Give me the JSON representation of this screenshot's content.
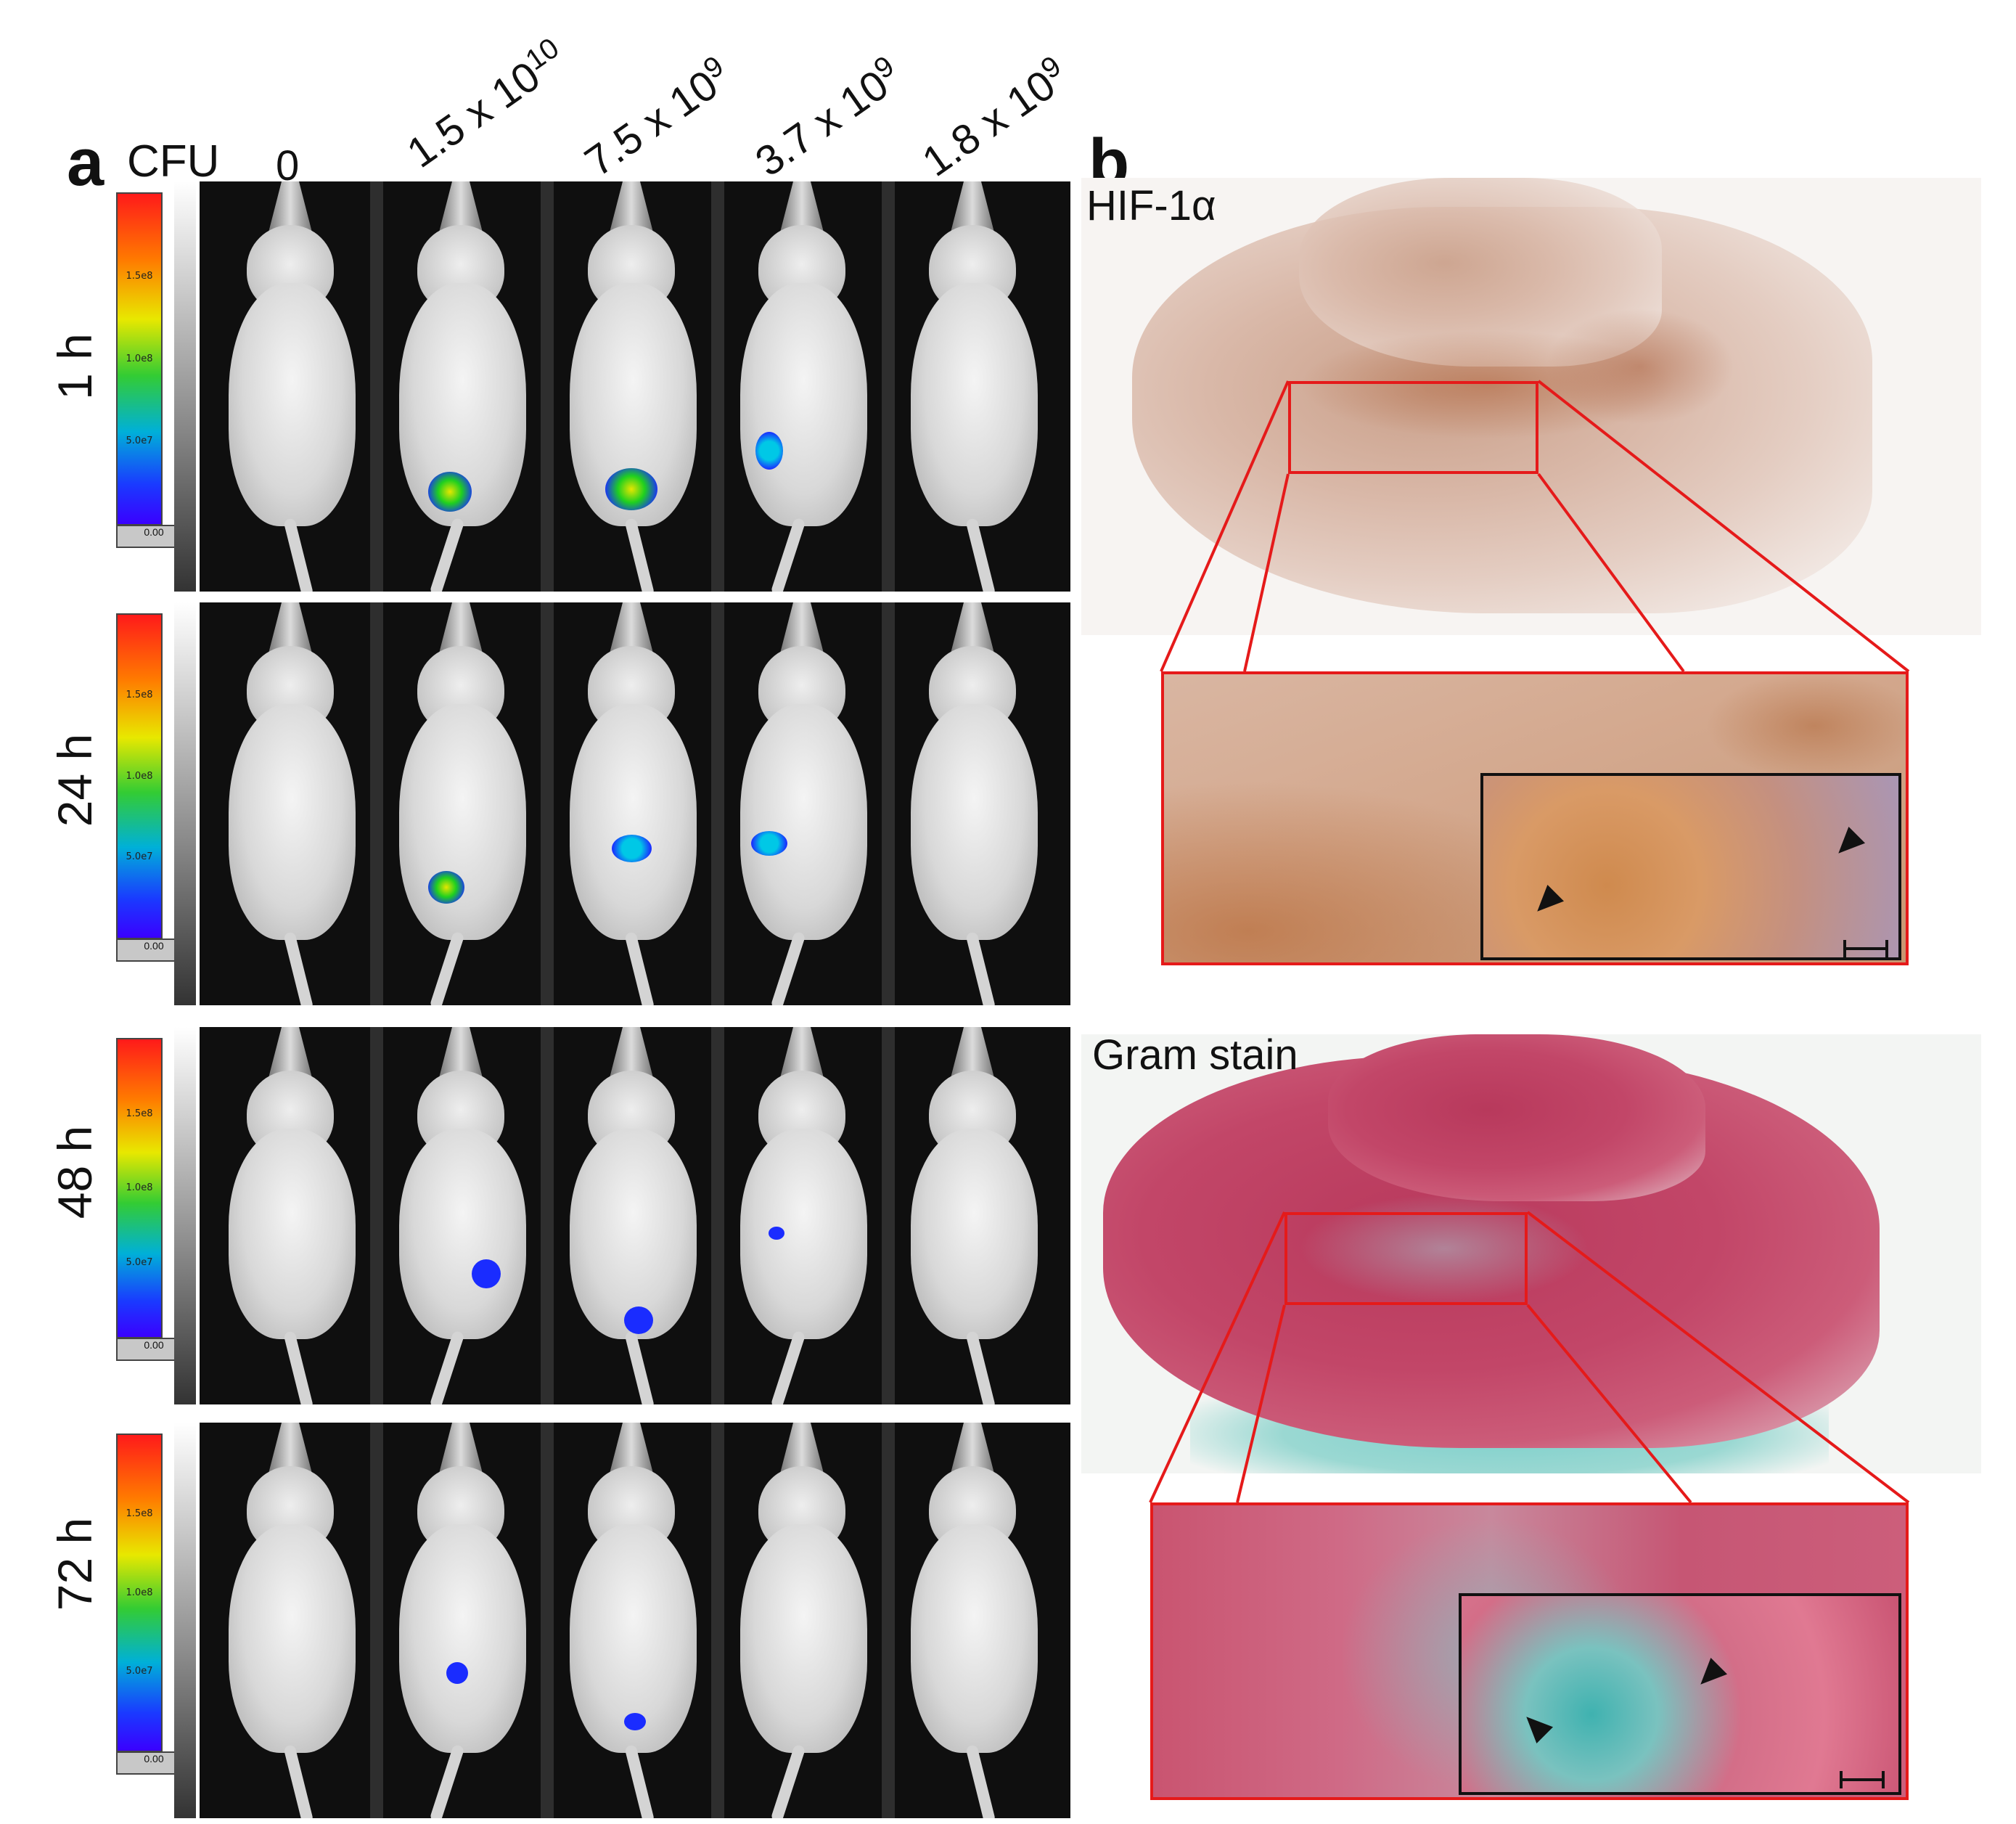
{
  "panel_a": {
    "label": "a",
    "unit_label": "CFU",
    "doses": [
      {
        "base": "0",
        "exp": ""
      },
      {
        "base": "1.5 x 10",
        "exp": "10"
      },
      {
        "base": "7.5 x 10",
        "exp": "9"
      },
      {
        "base": "3.7 x 10",
        "exp": "9"
      },
      {
        "base": "1.8 x 10",
        "exp": "9"
      }
    ],
    "timepoints": [
      "1 h",
      "24 h",
      "48 h",
      "72 h"
    ],
    "colorbar_ticks": [
      "1.5e8",
      "1.0e8",
      "5.0e7"
    ],
    "colorbar_min": "0.00",
    "luminescence_colors": {
      "high": "#1fd01f",
      "mid": "#00c8e6",
      "low": "#1a2cff"
    }
  },
  "panel_b": {
    "label": "b",
    "stains": [
      "HIF-1α",
      "Gram stain"
    ],
    "box_color": "#e51a1a"
  }
}
